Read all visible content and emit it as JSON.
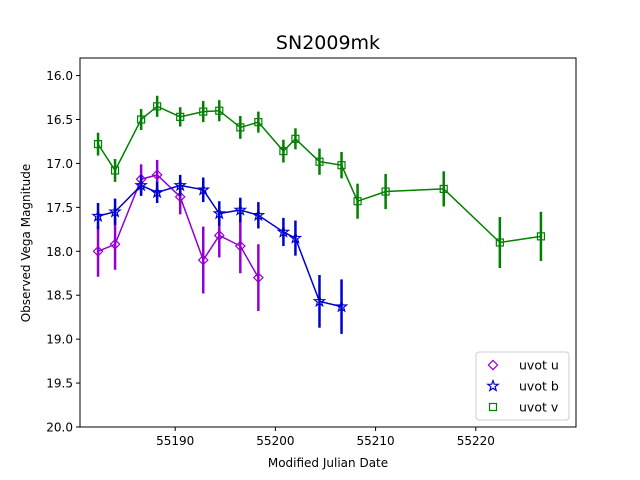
{
  "chart_data": {
    "type": "scatter",
    "title": "SN2009mk",
    "xlabel": "Modified Julian Date",
    "ylabel": "Observed Vega Magnitude",
    "xlim": [
      55180.5,
      55230.0
    ],
    "ylim": [
      20.0,
      15.8
    ],
    "y_inverted": true,
    "xticks": [
      55190,
      55200,
      55210,
      55220
    ],
    "yticks": [
      16.0,
      16.5,
      17.0,
      17.5,
      18.0,
      18.5,
      19.0,
      19.5,
      20.0
    ],
    "grid": false,
    "legend_position": "lower right",
    "series": [
      {
        "name": "uvot u",
        "marker": "diamond",
        "color": "#9400D3",
        "x": [
          55182.3,
          55184.0,
          55186.6,
          55188.2,
          55190.5,
          55192.8,
          55194.4,
          55196.5,
          55198.3
        ],
        "y": [
          18.0,
          17.92,
          17.18,
          17.13,
          17.38,
          18.1,
          17.82,
          17.94,
          18.3
        ],
        "yerr": [
          0.29,
          0.29,
          0.17,
          0.17,
          0.2,
          0.38,
          0.25,
          0.31,
          0.38
        ]
      },
      {
        "name": "uvot b",
        "marker": "star",
        "color": "#0000CD",
        "x": [
          55182.3,
          55184.0,
          55186.6,
          55188.2,
          55190.5,
          55192.8,
          55194.4,
          55196.5,
          55198.3,
          55200.8,
          55202.0,
          55204.4,
          55206.6
        ],
        "y": [
          17.6,
          17.55,
          17.25,
          17.33,
          17.25,
          17.3,
          17.57,
          17.53,
          17.59,
          17.78,
          17.85,
          18.57,
          18.63
        ],
        "yerr": [
          0.15,
          0.15,
          0.12,
          0.12,
          0.12,
          0.14,
          0.14,
          0.14,
          0.15,
          0.16,
          0.2,
          0.3,
          0.31
        ]
      },
      {
        "name": "uvot v",
        "marker": "square",
        "color": "#008000",
        "x": [
          55182.3,
          55184.0,
          55186.6,
          55188.2,
          55190.5,
          55192.8,
          55194.4,
          55196.5,
          55198.3,
          55200.8,
          55202.0,
          55204.4,
          55206.6,
          55208.2,
          55211.0,
          55216.8,
          55222.4,
          55226.5
        ],
        "y": [
          16.78,
          17.08,
          16.5,
          16.35,
          16.47,
          16.41,
          16.4,
          16.59,
          16.53,
          16.86,
          16.72,
          16.98,
          17.02,
          17.43,
          17.32,
          17.29,
          17.9,
          17.83
        ],
        "yerr": [
          0.13,
          0.13,
          0.12,
          0.12,
          0.11,
          0.12,
          0.12,
          0.13,
          0.12,
          0.13,
          0.12,
          0.15,
          0.15,
          0.2,
          0.2,
          0.2,
          0.29,
          0.28
        ]
      }
    ]
  }
}
